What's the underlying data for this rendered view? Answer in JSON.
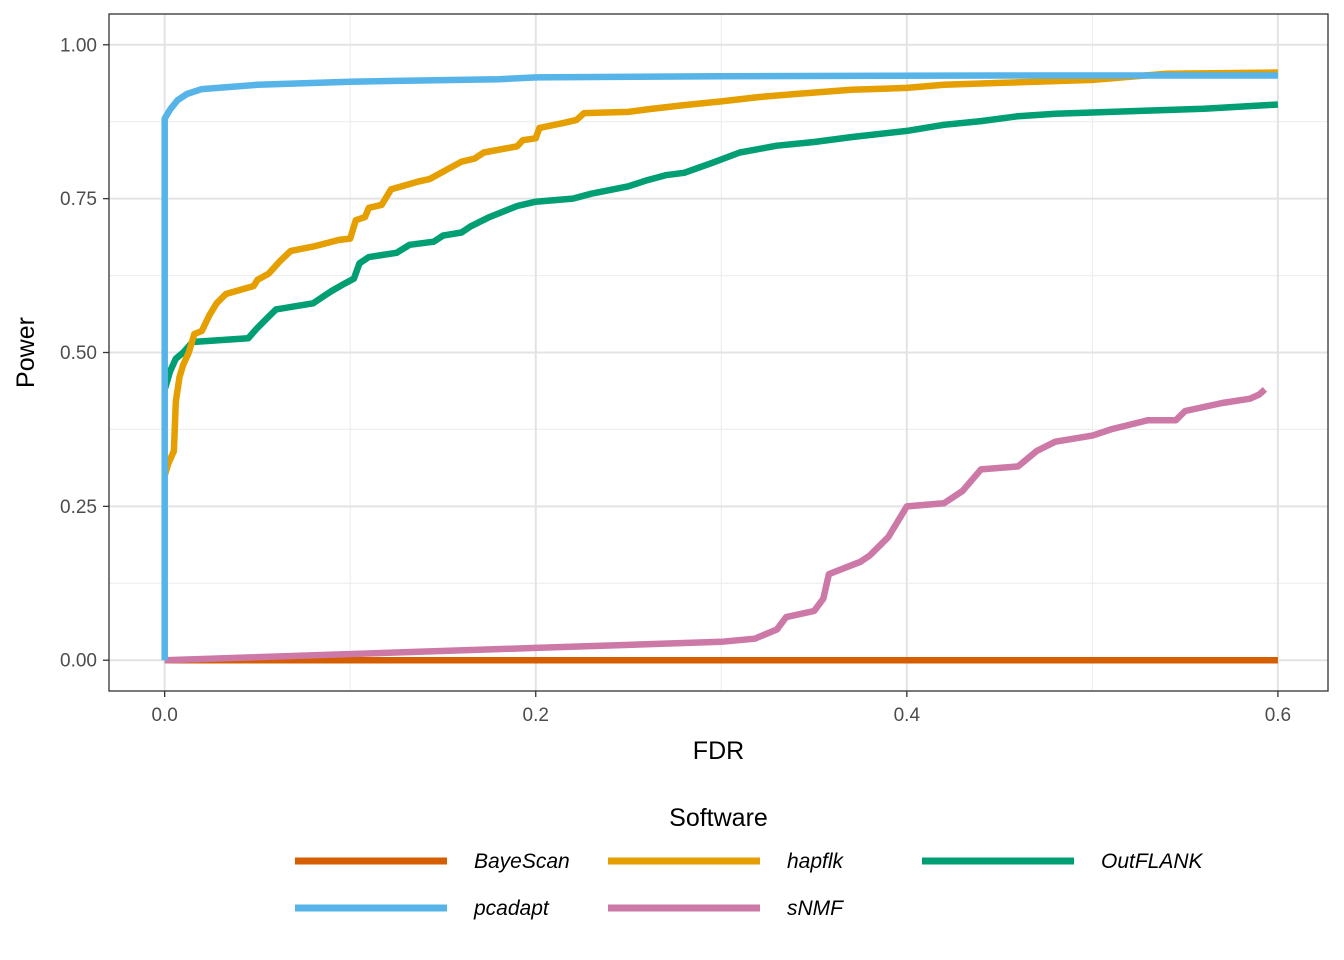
{
  "chart_data": {
    "type": "line",
    "xlabel": "FDR",
    "ylabel": "Power",
    "xlim": [
      -0.03,
      0.627
    ],
    "ylim": [
      -0.05,
      1.05
    ],
    "x_ticks": [
      0.0,
      0.2,
      0.4,
      0.6
    ],
    "x_tick_labels": [
      "0.0",
      "0.2",
      "0.4",
      "0.6"
    ],
    "y_ticks": [
      0.0,
      0.25,
      0.5,
      0.75,
      1.0
    ],
    "y_tick_labels": [
      "0.00",
      "0.25",
      "0.50",
      "0.75",
      "1.00"
    ],
    "grid": true,
    "legend_title": "Software",
    "legend_position": "bottom",
    "series": [
      {
        "name": "BayeScan",
        "color": "#D55E00",
        "points": [
          [
            0.0,
            0.0
          ],
          [
            0.6,
            0.0
          ]
        ]
      },
      {
        "name": "hapflk",
        "color": "#E69F00",
        "points": [
          [
            0.0,
            0.3
          ],
          [
            0.002,
            0.32
          ],
          [
            0.005,
            0.34
          ],
          [
            0.006,
            0.42
          ],
          [
            0.008,
            0.46
          ],
          [
            0.01,
            0.48
          ],
          [
            0.013,
            0.5
          ],
          [
            0.016,
            0.53
          ],
          [
            0.02,
            0.535
          ],
          [
            0.024,
            0.56
          ],
          [
            0.028,
            0.58
          ],
          [
            0.033,
            0.595
          ],
          [
            0.048,
            0.608
          ],
          [
            0.05,
            0.618
          ],
          [
            0.056,
            0.628
          ],
          [
            0.062,
            0.648
          ],
          [
            0.068,
            0.665
          ],
          [
            0.08,
            0.672
          ],
          [
            0.094,
            0.683
          ],
          [
            0.1,
            0.685
          ],
          [
            0.103,
            0.715
          ],
          [
            0.108,
            0.72
          ],
          [
            0.11,
            0.735
          ],
          [
            0.117,
            0.74
          ],
          [
            0.122,
            0.765
          ],
          [
            0.137,
            0.778
          ],
          [
            0.143,
            0.782
          ],
          [
            0.152,
            0.797
          ],
          [
            0.16,
            0.81
          ],
          [
            0.167,
            0.815
          ],
          [
            0.172,
            0.825
          ],
          [
            0.19,
            0.835
          ],
          [
            0.193,
            0.845
          ],
          [
            0.2,
            0.848
          ],
          [
            0.202,
            0.865
          ],
          [
            0.215,
            0.873
          ],
          [
            0.222,
            0.878
          ],
          [
            0.226,
            0.889
          ],
          [
            0.25,
            0.891
          ],
          [
            0.26,
            0.895
          ],
          [
            0.28,
            0.902
          ],
          [
            0.3,
            0.908
          ],
          [
            0.32,
            0.915
          ],
          [
            0.34,
            0.92
          ],
          [
            0.37,
            0.927
          ],
          [
            0.4,
            0.93
          ],
          [
            0.42,
            0.935
          ],
          [
            0.45,
            0.938
          ],
          [
            0.5,
            0.943
          ],
          [
            0.54,
            0.953
          ],
          [
            0.6,
            0.955
          ]
        ]
      },
      {
        "name": "OutFLANK",
        "color": "#009E73",
        "points": [
          [
            0.0,
            0.44
          ],
          [
            0.003,
            0.47
          ],
          [
            0.006,
            0.49
          ],
          [
            0.01,
            0.5
          ],
          [
            0.015,
            0.517
          ],
          [
            0.045,
            0.523
          ],
          [
            0.05,
            0.54
          ],
          [
            0.055,
            0.555
          ],
          [
            0.06,
            0.57
          ],
          [
            0.08,
            0.58
          ],
          [
            0.085,
            0.59
          ],
          [
            0.09,
            0.6
          ],
          [
            0.097,
            0.612
          ],
          [
            0.102,
            0.62
          ],
          [
            0.105,
            0.645
          ],
          [
            0.11,
            0.655
          ],
          [
            0.125,
            0.662
          ],
          [
            0.132,
            0.675
          ],
          [
            0.145,
            0.68
          ],
          [
            0.15,
            0.69
          ],
          [
            0.16,
            0.695
          ],
          [
            0.165,
            0.705
          ],
          [
            0.175,
            0.72
          ],
          [
            0.19,
            0.738
          ],
          [
            0.2,
            0.745
          ],
          [
            0.22,
            0.75
          ],
          [
            0.23,
            0.758
          ],
          [
            0.25,
            0.77
          ],
          [
            0.26,
            0.78
          ],
          [
            0.27,
            0.788
          ],
          [
            0.28,
            0.792
          ],
          [
            0.295,
            0.808
          ],
          [
            0.31,
            0.825
          ],
          [
            0.33,
            0.836
          ],
          [
            0.35,
            0.842
          ],
          [
            0.37,
            0.85
          ],
          [
            0.4,
            0.86
          ],
          [
            0.42,
            0.87
          ],
          [
            0.44,
            0.876
          ],
          [
            0.46,
            0.884
          ],
          [
            0.48,
            0.888
          ],
          [
            0.5,
            0.89
          ],
          [
            0.53,
            0.893
          ],
          [
            0.56,
            0.896
          ],
          [
            0.6,
            0.903
          ]
        ]
      },
      {
        "name": "pcadapt",
        "color": "#56B4E9",
        "points": [
          [
            0.0,
            0.0
          ],
          [
            0.0,
            0.88
          ],
          [
            0.003,
            0.895
          ],
          [
            0.007,
            0.91
          ],
          [
            0.012,
            0.92
          ],
          [
            0.02,
            0.928
          ],
          [
            0.05,
            0.935
          ],
          [
            0.1,
            0.94
          ],
          [
            0.18,
            0.944
          ],
          [
            0.2,
            0.947
          ],
          [
            0.3,
            0.949
          ],
          [
            0.45,
            0.95
          ],
          [
            0.6,
            0.95
          ]
        ]
      },
      {
        "name": "sNMF",
        "color": "#CC79A7",
        "points": [
          [
            0.0,
            0.0
          ],
          [
            0.2,
            0.02
          ],
          [
            0.3,
            0.03
          ],
          [
            0.318,
            0.035
          ],
          [
            0.33,
            0.05
          ],
          [
            0.335,
            0.07
          ],
          [
            0.35,
            0.08
          ],
          [
            0.355,
            0.1
          ],
          [
            0.358,
            0.14
          ],
          [
            0.375,
            0.16
          ],
          [
            0.38,
            0.17
          ],
          [
            0.39,
            0.2
          ],
          [
            0.4,
            0.25
          ],
          [
            0.42,
            0.255
          ],
          [
            0.43,
            0.275
          ],
          [
            0.44,
            0.31
          ],
          [
            0.46,
            0.315
          ],
          [
            0.47,
            0.34
          ],
          [
            0.48,
            0.355
          ],
          [
            0.5,
            0.365
          ],
          [
            0.51,
            0.375
          ],
          [
            0.53,
            0.39
          ],
          [
            0.545,
            0.39
          ],
          [
            0.55,
            0.405
          ],
          [
            0.57,
            0.418
          ],
          [
            0.585,
            0.425
          ],
          [
            0.59,
            0.432
          ],
          [
            0.593,
            0.44
          ]
        ]
      }
    ]
  }
}
